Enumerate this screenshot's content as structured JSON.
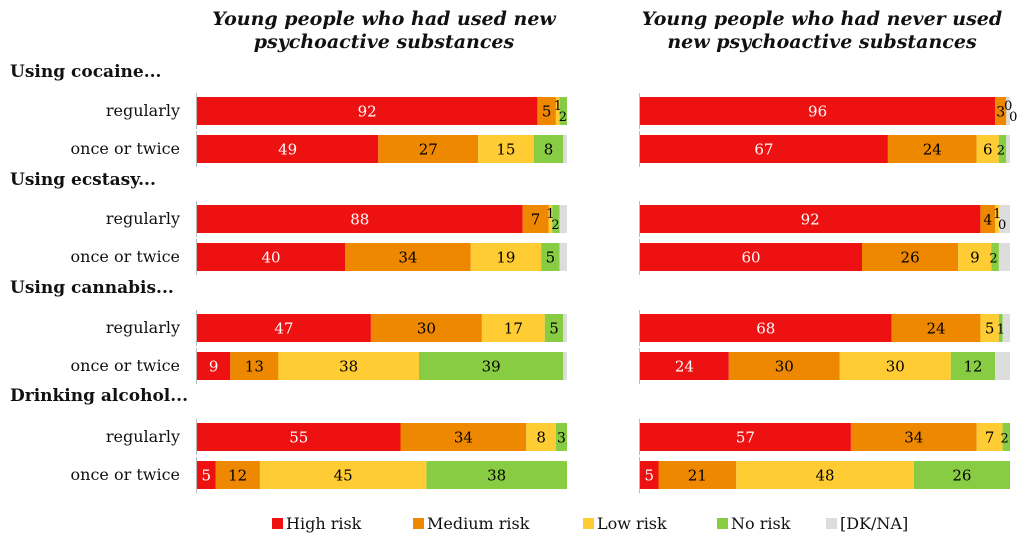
{
  "chart_data": {
    "type": "bar",
    "orientation": "horizontal",
    "stacked": "100%",
    "panels": [
      {
        "title": "Young people who had used new psychoactive substances"
      },
      {
        "title": "Young people who had never used new psychoactive substances"
      }
    ],
    "groups": [
      {
        "title": "Using cocaine...",
        "rows": [
          {
            "label": "regularly",
            "values": [
              [
                92,
                5,
                1,
                2,
                0
              ],
              [
                96,
                3,
                0,
                0,
                1
              ]
            ]
          },
          {
            "label": "once or twice",
            "values": [
              [
                49,
                27,
                15,
                8,
                1
              ],
              [
                67,
                24,
                6,
                2,
                1
              ]
            ]
          }
        ]
      },
      {
        "title": "Using ecstasy...",
        "rows": [
          {
            "label": "regularly",
            "values": [
              [
                88,
                7,
                1,
                2,
                2
              ],
              [
                92,
                4,
                1,
                0,
                3
              ]
            ]
          },
          {
            "label": "once or twice",
            "values": [
              [
                40,
                34,
                19,
                5,
                2
              ],
              [
                60,
                26,
                9,
                2,
                3
              ]
            ]
          }
        ]
      },
      {
        "title": "Using cannabis...",
        "rows": [
          {
            "label": "regularly",
            "values": [
              [
                47,
                30,
                17,
                5,
                1
              ],
              [
                68,
                24,
                5,
                1,
                2
              ]
            ]
          },
          {
            "label": "once or twice",
            "values": [
              [
                9,
                13,
                38,
                39,
                1
              ],
              [
                24,
                30,
                30,
                12,
                4
              ]
            ]
          }
        ]
      },
      {
        "title": "Drinking alcohol...",
        "rows": [
          {
            "label": "regularly",
            "values": [
              [
                55,
                34,
                8,
                3,
                0
              ],
              [
                57,
                34,
                7,
                2,
                0
              ]
            ]
          },
          {
            "label": "once or twice",
            "values": [
              [
                5,
                12,
                45,
                38,
                0
              ],
              [
                5,
                21,
                48,
                26,
                0
              ]
            ]
          }
        ]
      }
    ],
    "series": [
      {
        "name": "High risk",
        "color": "#ee1111"
      },
      {
        "name": "Medium risk",
        "color": "#ee8800"
      },
      {
        "name": "Low risk",
        "color": "#ffcc33"
      },
      {
        "name": "No risk",
        "color": "#88cc44"
      },
      {
        "name": "[DK/NA]",
        "color": "#dddddd"
      }
    ],
    "xlim": [
      0,
      100
    ],
    "legend_position": "bottom",
    "grid": false
  }
}
